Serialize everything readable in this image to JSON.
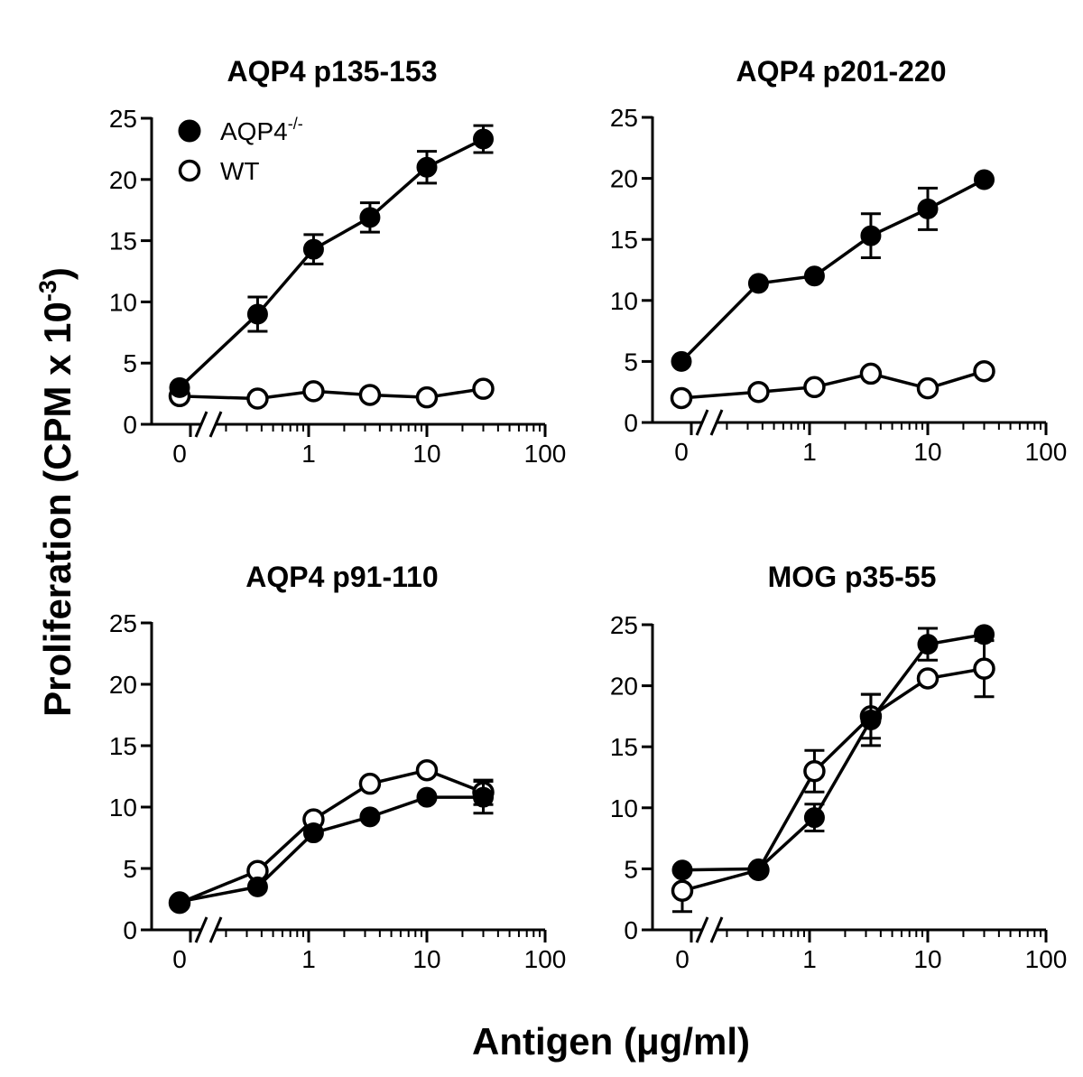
{
  "ylabel_main": "Proliferation (CPM x 10",
  "ylabel_sup": "-3",
  "ylabel_close": ")",
  "xlabel": "Antigen (μg/ml)",
  "legend": {
    "series": [
      {
        "label": "AQP4",
        "sup": "-/-",
        "filled": true
      },
      {
        "label": "WT",
        "sup": "",
        "filled": false
      }
    ]
  },
  "chart_data": [
    {
      "type": "line",
      "title": "AQP4 p135-153",
      "xscale": "log with break at 0",
      "xticks": [
        "0",
        "1",
        "10",
        "100"
      ],
      "ylim": [
        0,
        25
      ],
      "yticks": [
        "0",
        "5",
        "10",
        "15",
        "20",
        "25"
      ],
      "x": [
        0,
        0.37,
        1.1,
        3.3,
        10,
        30
      ],
      "series": [
        {
          "name": "AQP4-/-",
          "filled": true,
          "values": [
            3.0,
            9.0,
            14.3,
            16.9,
            21.0,
            23.3
          ],
          "err": [
            0,
            1.4,
            1.2,
            1.2,
            1.3,
            1.1
          ]
        },
        {
          "name": "WT",
          "filled": false,
          "values": [
            2.3,
            2.1,
            2.7,
            2.4,
            2.2,
            2.9
          ],
          "err": [
            0,
            0,
            0,
            0,
            0,
            0
          ]
        }
      ]
    },
    {
      "type": "line",
      "title": "AQP4 p201-220",
      "xscale": "log with break at 0",
      "xticks": [
        "0",
        "1",
        "10",
        "100"
      ],
      "ylim": [
        0,
        25
      ],
      "yticks": [
        "0",
        "5",
        "10",
        "15",
        "20",
        "25"
      ],
      "x": [
        0,
        0.37,
        1.1,
        3.3,
        10,
        30
      ],
      "series": [
        {
          "name": "AQP4-/-",
          "filled": true,
          "values": [
            5.0,
            11.4,
            12.0,
            15.3,
            17.5,
            19.9
          ],
          "err": [
            0,
            0,
            0,
            1.8,
            1.7,
            0
          ]
        },
        {
          "name": "WT",
          "filled": false,
          "values": [
            2.0,
            2.5,
            2.9,
            4.0,
            2.8,
            4.2
          ],
          "err": [
            0,
            0,
            0,
            0,
            0,
            0
          ]
        }
      ]
    },
    {
      "type": "line",
      "title": "AQP4 p91-110",
      "xscale": "log with break at 0",
      "xticks": [
        "0",
        "1",
        "10",
        "100"
      ],
      "ylim": [
        0,
        25
      ],
      "yticks": [
        "0",
        "5",
        "10",
        "15",
        "20",
        "25"
      ],
      "x": [
        0,
        0.37,
        1.1,
        3.3,
        10,
        30
      ],
      "series": [
        {
          "name": "AQP4-/-",
          "filled": true,
          "values": [
            2.3,
            3.5,
            7.9,
            9.2,
            10.8,
            10.8
          ],
          "err": [
            0,
            0,
            0,
            0,
            0,
            1.3
          ]
        },
        {
          "name": "WT",
          "filled": false,
          "values": [
            2.2,
            4.8,
            9.0,
            11.9,
            13.0,
            11.2
          ],
          "err": [
            0,
            0,
            0,
            0,
            0,
            1.0
          ]
        }
      ]
    },
    {
      "type": "line",
      "title": "MOG p35-55",
      "xscale": "log with break at 0",
      "xticks": [
        "0",
        "1",
        "10",
        "100"
      ],
      "ylim": [
        0,
        25
      ],
      "yticks": [
        "0",
        "5",
        "10",
        "15",
        "20",
        "25"
      ],
      "x": [
        0,
        0.37,
        1.1,
        3.3,
        10,
        30
      ],
      "series": [
        {
          "name": "AQP4-/-",
          "filled": true,
          "values": [
            4.9,
            5.0,
            9.2,
            17.2,
            23.4,
            24.2
          ],
          "err": [
            0,
            0,
            1.1,
            2.1,
            1.3,
            0
          ]
        },
        {
          "name": "WT",
          "filled": false,
          "values": [
            3.2,
            4.9,
            13.0,
            17.5,
            20.6,
            21.4
          ],
          "err": [
            1.7,
            0,
            1.7,
            1.8,
            0,
            2.3
          ]
        }
      ]
    }
  ]
}
